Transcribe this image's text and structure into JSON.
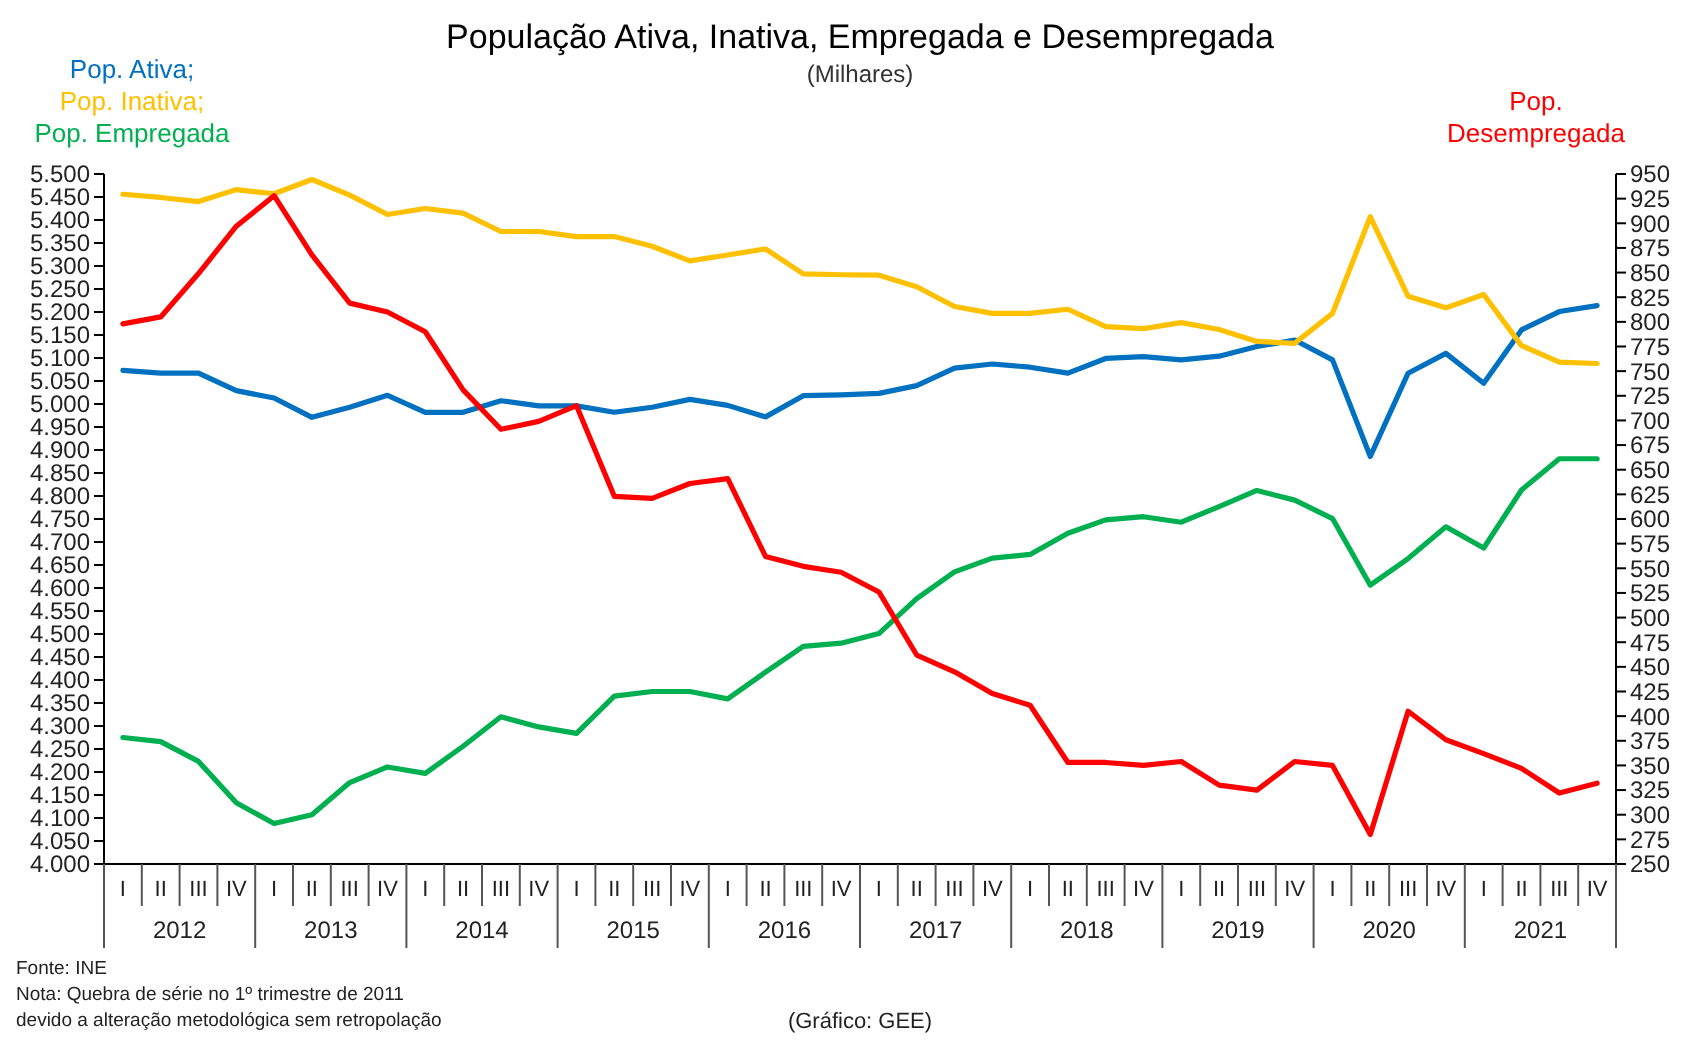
{
  "chart_data": {
    "type": "line",
    "title": "População Ativa, Inativa, Empregada e Desempregada",
    "subtitle": "(Milhares)",
    "categories": [
      "I",
      "II",
      "III",
      "IV",
      "I",
      "II",
      "III",
      "IV",
      "I",
      "II",
      "III",
      "IV",
      "I",
      "II",
      "III",
      "IV",
      "I",
      "II",
      "III",
      "IV",
      "I",
      "II",
      "III",
      "IV",
      "I",
      "II",
      "III",
      "IV",
      "I",
      "II",
      "III",
      "IV",
      "I",
      "II",
      "III",
      "IV",
      "I",
      "II",
      "III",
      "IV"
    ],
    "series": [
      {
        "name": "Pop. Ativa;",
        "color": "#0070c0",
        "values": [
          5073,
          5067,
          5067,
          5029,
          5013,
          4971,
          4993,
          5019,
          4982,
          4982,
          5007,
          4996,
          4996,
          4982,
          4993,
          5010,
          4997,
          4972,
          5018,
          5020,
          5023,
          5040,
          5078,
          5087,
          5080,
          5067,
          5099,
          5103,
          5096,
          5104,
          5125,
          5139,
          5096,
          4886,
          5067,
          5110,
          5045,
          5161,
          5201,
          5214
        ]
      },
      {
        "name": "Pop. Inativa;",
        "color": "#ffc000",
        "values": [
          5456,
          5449,
          5440,
          5466,
          5457,
          5488,
          5454,
          5412,
          5425,
          5415,
          5375,
          5375,
          5364,
          5364,
          5343,
          5311,
          5324,
          5337,
          5283,
          5281,
          5280,
          5255,
          5212,
          5197,
          5197,
          5206,
          5168,
          5164,
          5177,
          5162,
          5136,
          5132,
          5197,
          5407,
          5234,
          5209,
          5238,
          5127,
          5091,
          5088
        ]
      },
      {
        "name": "Pop. Empregada",
        "color": "#00b050",
        "values": [
          4275,
          4266,
          4223,
          4133,
          4088,
          4107,
          4177,
          4211,
          4197,
          4256,
          4320,
          4298,
          4284,
          4365,
          4375,
          4375,
          4359,
          4417,
          4473,
          4480,
          4501,
          4577,
          4635,
          4665,
          4673,
          4719,
          4748,
          4755,
          4743,
          4777,
          4812,
          4791,
          4751,
          4606,
          4664,
          4733,
          4687,
          4813,
          4881,
          4881
        ]
      },
      {
        "name": "Pop. Desempregada",
        "color": "#ff0000",
        "axis": "y2",
        "values": [
          798,
          805,
          849,
          897,
          928,
          868,
          819,
          810,
          790,
          731,
          691,
          699,
          715,
          623,
          621,
          636,
          641,
          562,
          552,
          546,
          526,
          462,
          445,
          423,
          411,
          353,
          353,
          350,
          354,
          330,
          325,
          354,
          350,
          280,
          405,
          376,
          362,
          347,
          322,
          332
        ]
      }
    ],
    "ylim": [
      4000,
      5500
    ],
    "yticks": [
      {
        "value": 4000,
        "label": "4.000"
      },
      {
        "value": 4050,
        "label": "4.050"
      },
      {
        "value": 4100,
        "label": "4.100"
      },
      {
        "value": 4150,
        "label": "4.150"
      },
      {
        "value": 4200,
        "label": "4.200"
      },
      {
        "value": 4250,
        "label": "4.250"
      },
      {
        "value": 4300,
        "label": "4.300"
      },
      {
        "value": 4350,
        "label": "4.350"
      },
      {
        "value": 4400,
        "label": "4.400"
      },
      {
        "value": 4450,
        "label": "4.450"
      },
      {
        "value": 4500,
        "label": "4.500"
      },
      {
        "value": 4550,
        "label": "4.550"
      },
      {
        "value": 4600,
        "label": "4.600"
      },
      {
        "value": 4650,
        "label": "4.650"
      },
      {
        "value": 4700,
        "label": "4.700"
      },
      {
        "value": 4750,
        "label": "4.750"
      },
      {
        "value": 4800,
        "label": "4.800"
      },
      {
        "value": 4850,
        "label": "4.850"
      },
      {
        "value": 4900,
        "label": "4.900"
      },
      {
        "value": 4950,
        "label": "4.950"
      },
      {
        "value": 5000,
        "label": "5.000"
      },
      {
        "value": 5050,
        "label": "5.050"
      },
      {
        "value": 5100,
        "label": "5.100"
      },
      {
        "value": 5150,
        "label": "5.150"
      },
      {
        "value": 5200,
        "label": "5.200"
      },
      {
        "value": 5250,
        "label": "5.250"
      },
      {
        "value": 5300,
        "label": "5.300"
      },
      {
        "value": 5350,
        "label": "5.350"
      },
      {
        "value": 5400,
        "label": "5.400"
      },
      {
        "value": 5450,
        "label": "5.450"
      },
      {
        "value": 5500,
        "label": "5.500"
      }
    ],
    "y2lim": [
      250,
      950
    ],
    "y2ticks": [
      250,
      275,
      300,
      325,
      350,
      375,
      400,
      425,
      450,
      475,
      500,
      525,
      550,
      575,
      600,
      625,
      650,
      675,
      700,
      725,
      750,
      775,
      800,
      825,
      850,
      875,
      900,
      925,
      950
    ],
    "annotations": [
      "2012",
      "2013",
      "2014",
      "2015",
      "2016",
      "2017",
      "2018",
      "2019",
      "2020",
      "2021",
      "Fonte: INE",
      "Nota: Quebra de série no 1º trimestre de 2011",
      "devido a alteração metodológica sem retropolação",
      "(Gráfico: GEE)"
    ]
  }
}
